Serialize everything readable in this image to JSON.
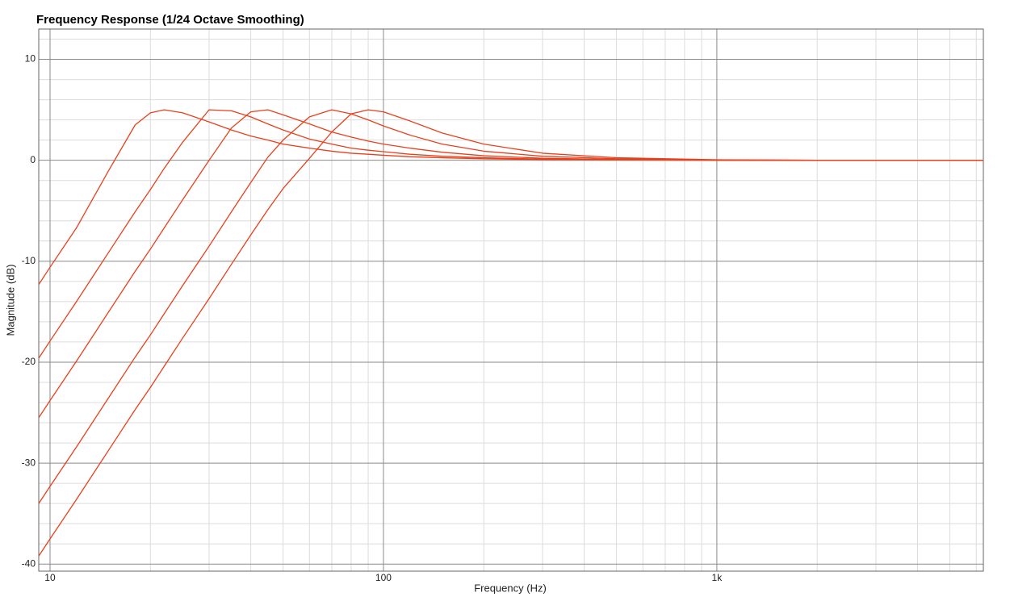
{
  "chart_data": {
    "type": "line",
    "title": "Frequency Response (1/24 Octave Smoothing)",
    "xlabel": "Frequency (Hz)",
    "ylabel": "Magnitude (dB)",
    "xscale": "log",
    "grid": true,
    "xlim": [
      9.25,
      6300
    ],
    "ylim": [
      -40.7,
      13
    ],
    "xticks": [
      10,
      100,
      {
        "value": 1000,
        "label": "1k"
      }
    ],
    "yticks": [
      10,
      0,
      -10,
      -20,
      -30,
      -40
    ],
    "xminor": [
      20,
      30,
      40,
      50,
      60,
      70,
      80,
      90,
      200,
      300,
      400,
      500,
      600,
      700,
      800,
      900,
      2000,
      3000,
      4000,
      5000,
      6000
    ],
    "yminor": [
      12,
      8,
      6,
      4,
      2,
      -2,
      -4,
      -6,
      -8,
      -12,
      -14,
      -16,
      -18,
      -22,
      -24,
      -26,
      -28,
      -32,
      -34,
      -36,
      -38
    ],
    "x": [
      9.25,
      10,
      12,
      15,
      18,
      20,
      22,
      25,
      30,
      35,
      40,
      45,
      50,
      60,
      70,
      80,
      90,
      100,
      120,
      150,
      200,
      300,
      500,
      1000,
      2000,
      6300
    ],
    "series": [
      {
        "color": "#e8401c",
        "values": [
          -12.3,
          -10.6,
          -6.7,
          -1,
          3.5,
          4.7,
          5.0,
          4.7,
          3.8,
          3.0,
          2.4,
          2.0,
          1.6,
          1.2,
          0.9,
          0.7,
          0.6,
          0.5,
          0.35,
          0.25,
          0.15,
          0.07,
          0.03,
          0,
          0,
          0
        ]
      },
      {
        "color": "#e8401c",
        "values": [
          -19.6,
          -17.9,
          -14.0,
          -9.1,
          -5.1,
          -2.9,
          -0.8,
          1.8,
          5.0,
          4.9,
          4.3,
          3.6,
          3.0,
          2.1,
          1.6,
          1.2,
          1.0,
          0.85,
          0.6,
          0.4,
          0.25,
          0.12,
          0.05,
          0.01,
          0,
          0
        ]
      },
      {
        "color": "#e8401c",
        "values": [
          -25.5,
          -23.8,
          -19.9,
          -15,
          -11,
          -8.8,
          -6.7,
          -3.9,
          0,
          3.2,
          4.8,
          5.0,
          4.5,
          3.6,
          2.8,
          2.3,
          1.9,
          1.6,
          1.2,
          0.8,
          0.45,
          0.2,
          0.08,
          0.02,
          0,
          0
        ]
      },
      {
        "color": "#e8401c",
        "values": [
          -34,
          -32.3,
          -28.4,
          -23.5,
          -19.5,
          -17.3,
          -15.2,
          -12.4,
          -8.5,
          -5.1,
          -2.2,
          0.3,
          2.0,
          4.3,
          5.0,
          4.6,
          4.0,
          3.4,
          2.5,
          1.6,
          0.9,
          0.4,
          0.15,
          0.03,
          0,
          0
        ]
      },
      {
        "color": "#e8401c",
        "values": [
          -39.2,
          -37.5,
          -33.6,
          -28.7,
          -24.7,
          -22.5,
          -20.4,
          -17.6,
          -13.7,
          -10.3,
          -7.4,
          -4.9,
          -2.8,
          0.2,
          2.8,
          4.6,
          5.0,
          4.8,
          3.9,
          2.7,
          1.6,
          0.7,
          0.25,
          0.05,
          0,
          0
        ]
      }
    ]
  }
}
